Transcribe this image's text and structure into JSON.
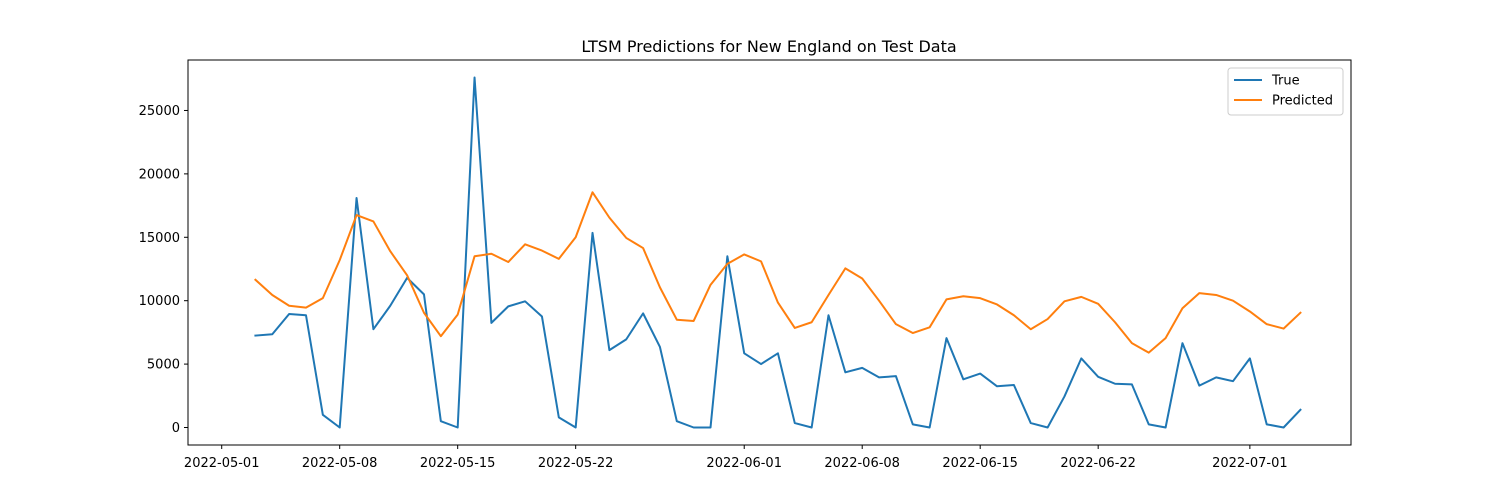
{
  "chart_data": {
    "type": "line",
    "title": "LTSM Predictions for New England on Test Data",
    "xlabel": "",
    "ylabel": "",
    "x_start": "2022-05-03",
    "x": [
      "2022-05-03",
      "2022-05-04",
      "2022-05-05",
      "2022-05-06",
      "2022-05-07",
      "2022-05-08",
      "2022-05-09",
      "2022-05-10",
      "2022-05-11",
      "2022-05-12",
      "2022-05-13",
      "2022-05-14",
      "2022-05-15",
      "2022-05-16",
      "2022-05-17",
      "2022-05-18",
      "2022-05-19",
      "2022-05-20",
      "2022-05-21",
      "2022-05-22",
      "2022-05-23",
      "2022-05-24",
      "2022-05-25",
      "2022-05-26",
      "2022-05-27",
      "2022-05-28",
      "2022-05-29",
      "2022-05-30",
      "2022-05-31",
      "2022-06-01",
      "2022-06-02",
      "2022-06-03",
      "2022-06-04",
      "2022-06-05",
      "2022-06-06",
      "2022-06-07",
      "2022-06-08",
      "2022-06-09",
      "2022-06-10",
      "2022-06-11",
      "2022-06-12",
      "2022-06-13",
      "2022-06-14",
      "2022-06-15",
      "2022-06-16",
      "2022-06-17",
      "2022-06-18",
      "2022-06-19",
      "2022-06-20",
      "2022-06-21",
      "2022-06-22",
      "2022-06-23",
      "2022-06-24",
      "2022-06-25",
      "2022-06-26",
      "2022-06-27",
      "2022-06-28",
      "2022-06-29",
      "2022-06-30",
      "2022-07-01",
      "2022-07-02",
      "2022-07-03",
      "2022-07-04"
    ],
    "series": [
      {
        "name": "True",
        "color": "#1f77b4",
        "values": [
          7250,
          7350,
          8950,
          8850,
          1000,
          0,
          18100,
          7750,
          9600,
          11800,
          10500,
          500,
          0,
          27600,
          8250,
          9550,
          9950,
          8750,
          800,
          0,
          15350,
          6100,
          6950,
          9000,
          6350,
          500,
          0,
          0,
          13500,
          5850,
          5000,
          5850,
          350,
          0,
          8850,
          4350,
          4700,
          3950,
          4050,
          250,
          0,
          7050,
          3800,
          4250,
          3250,
          3350,
          350,
          0,
          2450,
          5450,
          4000,
          3450,
          3400,
          250,
          0,
          6650,
          3300,
          3950,
          3650,
          5450,
          250,
          0,
          1400
        ]
      },
      {
        "name": "Predicted",
        "color": "#ff7f0e",
        "values": [
          11650,
          10450,
          9600,
          9450,
          10200,
          13200,
          16750,
          16250,
          13900,
          12000,
          9050,
          7200,
          8900,
          13500,
          13700,
          13050,
          14450,
          13950,
          13300,
          15000,
          18550,
          16550,
          14950,
          14150,
          11050,
          8500,
          8400,
          11250,
          12900,
          13650,
          13100,
          9850,
          7850,
          8300,
          10450,
          12550,
          11750,
          10000,
          8150,
          7450,
          7900,
          10100,
          10350,
          10200,
          9700,
          8850,
          7750,
          8550,
          9950,
          10300,
          9750,
          8300,
          6650,
          5900,
          7050,
          9400,
          10600,
          10450,
          10000,
          9150,
          8150,
          7800,
          9050
        ]
      }
    ],
    "xticks": [
      "2022-05-01",
      "2022-05-08",
      "2022-05-15",
      "2022-05-22",
      "2022-06-01",
      "2022-06-08",
      "2022-06-15",
      "2022-06-22",
      "2022-07-01"
    ],
    "yticks": [
      0,
      5000,
      10000,
      15000,
      20000,
      25000
    ],
    "xlim": [
      "2022-04-29",
      "2022-07-07"
    ],
    "ylim": [
      -1380,
      28980
    ],
    "legend": "top-right",
    "grid": false
  }
}
